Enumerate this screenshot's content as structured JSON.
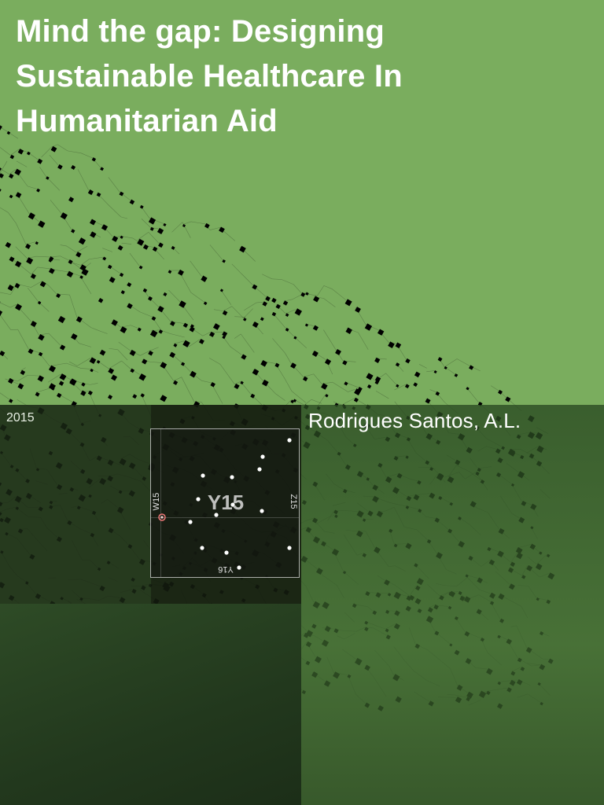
{
  "cover": {
    "title": "Mind the gap: Designing Sustainable Healthcare In Humanitarian Aid",
    "year": "2015",
    "author": "Rodrigues Santos, A.L.",
    "colors": {
      "background_green": "#7aad5e",
      "pattern": "#000000",
      "text": "#ffffff"
    }
  },
  "map_card": {
    "center_label": "Y15",
    "left_label": "W15",
    "right_label": "Z15",
    "bottom_label": "Y16"
  }
}
